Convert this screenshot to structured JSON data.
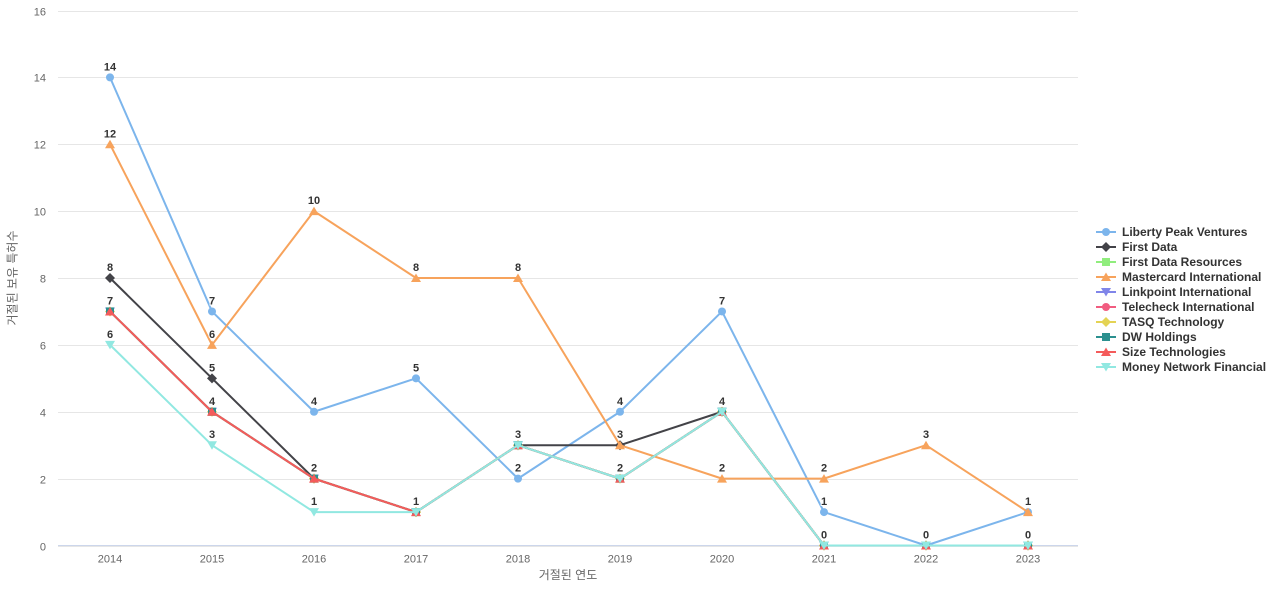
{
  "chart_data": {
    "type": "line",
    "title": "",
    "xlabel": "거절된 연도",
    "ylabel": "거절된 보유 특허수",
    "categories": [
      "2014",
      "2015",
      "2016",
      "2017",
      "2018",
      "2019",
      "2020",
      "2021",
      "2022",
      "2023"
    ],
    "ylim": [
      0,
      16
    ],
    "ytick_step": 2,
    "grid": "horizontal",
    "legend_position": "right",
    "colors": {
      "grid_line": "#e6e6e6",
      "axis_line": "#ccd6eb",
      "tick_label": "#666666",
      "axis_title": "#666666",
      "data_label": "#333333",
      "legend_text": "#333333"
    },
    "series": [
      {
        "name": "Liberty Peak Ventures",
        "color": "#7cb5ec",
        "marker": "circle",
        "values": [
          14,
          7,
          4,
          5,
          2,
          4,
          7,
          1,
          0,
          1
        ]
      },
      {
        "name": "First Data",
        "color": "#434348",
        "marker": "diamond",
        "values": [
          8,
          5,
          2,
          1,
          3,
          3,
          4,
          0,
          0,
          0
        ]
      },
      {
        "name": "First Data Resources",
        "color": "#90ed7d",
        "marker": "square",
        "values": [
          7,
          4,
          2,
          1,
          3,
          2,
          4,
          0,
          0,
          0
        ]
      },
      {
        "name": "Mastercard International",
        "color": "#f7a35c",
        "marker": "triangle",
        "values": [
          12,
          6,
          10,
          8,
          8,
          3,
          2,
          2,
          3,
          1
        ]
      },
      {
        "name": "Linkpoint International",
        "color": "#8085e9",
        "marker": "triangle-down",
        "values": [
          7,
          4,
          2,
          1,
          3,
          2,
          4,
          0,
          0,
          0
        ]
      },
      {
        "name": "Telecheck International",
        "color": "#f15c80",
        "marker": "circle",
        "values": [
          7,
          4,
          2,
          1,
          3,
          2,
          4,
          0,
          0,
          0
        ]
      },
      {
        "name": "TASQ Technology",
        "color": "#e4d354",
        "marker": "diamond",
        "values": [
          7,
          4,
          2,
          1,
          3,
          2,
          4,
          0,
          0,
          0
        ]
      },
      {
        "name": "DW Holdings",
        "color": "#2b908f",
        "marker": "square",
        "values": [
          7,
          4,
          2,
          1,
          3,
          2,
          4,
          0,
          0,
          0
        ]
      },
      {
        "name": "Size Technologies",
        "color": "#f45b5b",
        "marker": "triangle",
        "values": [
          7,
          4,
          2,
          1,
          3,
          2,
          4,
          0,
          0,
          0
        ]
      },
      {
        "name": "Money Network Financial",
        "color": "#91e8e1",
        "marker": "triangle-down",
        "values": [
          6,
          3,
          1,
          1,
          3,
          2,
          4,
          0,
          0,
          0
        ]
      }
    ]
  }
}
